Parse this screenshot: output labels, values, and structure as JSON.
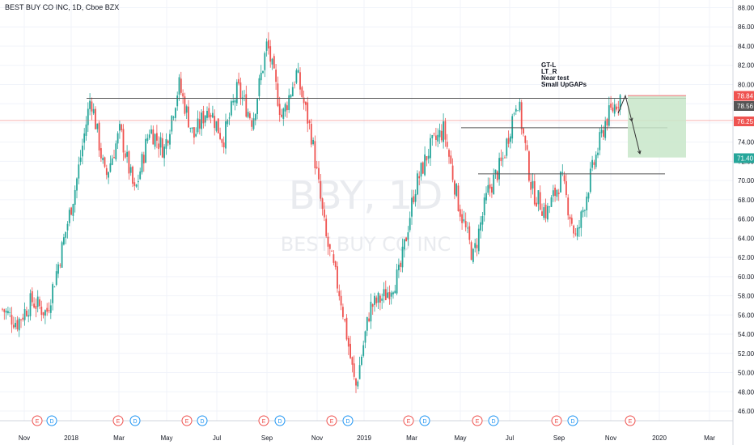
{
  "header": {
    "title": "BEST BUY CO INC, 1D, Cboe BZX"
  },
  "watermark": {
    "symbol": "BBY, 1D",
    "name": "BEST BUY CO INC"
  },
  "annotation_lines": [
    "GT-L",
    "LT_R",
    "Near test",
    "Small UpGAPs"
  ],
  "chart_data": {
    "type": "candlestick",
    "title": "BEST BUY CO INC, 1D, Cboe BZX",
    "ylim": [
      45,
      89
    ],
    "y_ticks": [
      "46.00",
      "48.00",
      "50.00",
      "52.00",
      "54.00",
      "56.00",
      "58.00",
      "60.00",
      "62.00",
      "64.00",
      "66.00",
      "68.00",
      "70.00",
      "72.00",
      "74.00",
      "76.00",
      "78.00",
      "80.00",
      "82.00",
      "84.00",
      "86.00",
      "88.00"
    ],
    "x_ticks": [
      "Nov",
      "2018",
      "Mar",
      "May",
      "Jul",
      "Sep",
      "Nov",
      "2019",
      "Mar",
      "May",
      "Jul",
      "Sep",
      "Nov",
      "2020",
      "Mar"
    ],
    "price_tags": [
      {
        "value": "78.84",
        "color": "#ef5350"
      },
      {
        "value": "78.56",
        "color": "#555555"
      },
      {
        "value": "76.25",
        "color": "#ef5350"
      },
      {
        "value": "71.40",
        "color": "#26a69a"
      }
    ],
    "current_price": 76.25,
    "resistance_line": 78.56,
    "levels": [
      78.56,
      75.5,
      70.7
    ],
    "target_box": {
      "top": 78.84,
      "bottom": 72.4
    },
    "projection": [
      78.84,
      76.2,
      72.8
    ],
    "events": [
      "E",
      "D",
      "E",
      "D",
      "E",
      "D",
      "E",
      "D",
      "E",
      "D",
      "E",
      "D",
      "E",
      "D",
      "E",
      "D",
      "E"
    ],
    "colors": {
      "up": "#26a69a",
      "down": "#ef5350",
      "event_earnings": "#ef5350",
      "event_dividend": "#2196f3"
    },
    "price_path": [
      56.6,
      55.2,
      57.5,
      56.2,
      62.6,
      69.6,
      78.8,
      70.2,
      75.2,
      68.6,
      75.4,
      73.2,
      80.0,
      74.5,
      77.8,
      74.2,
      79.6,
      76.2,
      84.3,
      76.5,
      81.2,
      74.8,
      64.0,
      57.8,
      48.3,
      56.8,
      58.0,
      60.3,
      69.0,
      73.2,
      75.3,
      67.6,
      62.0,
      68.8,
      72.0,
      78.8,
      69.0,
      66.6,
      70.3,
      63.8,
      70.5,
      76.2,
      78.8
    ]
  }
}
